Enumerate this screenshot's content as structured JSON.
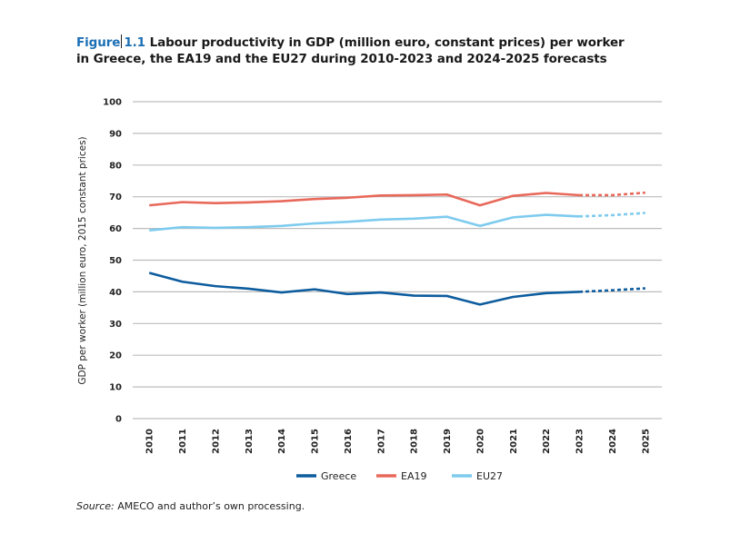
{
  "figure": {
    "label": "Figure",
    "number": "1.1",
    "title_line1": "Labour productivity in GDP (million euro, constant prices) per worker",
    "title_line2": "in Greece, the EA19 and the EU27 during 2010-2023 and 2024-2025 forecasts"
  },
  "source": {
    "label": "Source:",
    "text": "AMECO and author’s own processing."
  },
  "chart_data": {
    "type": "line",
    "title": "Labour productivity in GDP (million euro, constant prices) per worker in Greece, the EA19 and the EU27 during 2010-2023 and 2024-2025 forecasts",
    "xlabel": "",
    "ylabel": "GDP per worker (million euro, 2015 constant prices)",
    "ylim": [
      0,
      100
    ],
    "yticks": [
      "0",
      "10",
      "20",
      "30",
      "40",
      "50",
      "60",
      "70",
      "80",
      "90",
      "100"
    ],
    "grid": true,
    "legend_position": "bottom",
    "x": [
      "2010",
      "2011",
      "2012",
      "2013",
      "2014",
      "2015",
      "2016",
      "2017",
      "2018",
      "2019",
      "2020",
      "2021",
      "2022",
      "2023",
      "2024",
      "2025"
    ],
    "forecast_from": "2023",
    "series": [
      {
        "name": "Greece",
        "color": "#0d5c9e",
        "values": [
          46.0,
          43.2,
          41.8,
          41.0,
          39.8,
          40.8,
          39.3,
          39.8,
          38.8,
          38.7,
          36.0,
          38.4,
          39.6,
          40.0,
          40.5,
          41.1
        ]
      },
      {
        "name": "EA19",
        "color": "#e8685a",
        "values": [
          67.3,
          68.3,
          68.0,
          68.2,
          68.6,
          69.3,
          69.7,
          70.4,
          70.5,
          70.7,
          67.3,
          70.3,
          71.2,
          70.5,
          70.5,
          71.3
        ]
      },
      {
        "name": "EU27",
        "color": "#7ecbee",
        "values": [
          59.4,
          60.4,
          60.2,
          60.4,
          60.8,
          61.6,
          62.1,
          62.8,
          63.1,
          63.7,
          60.8,
          63.5,
          64.3,
          63.8,
          64.2,
          64.9
        ]
      }
    ]
  }
}
